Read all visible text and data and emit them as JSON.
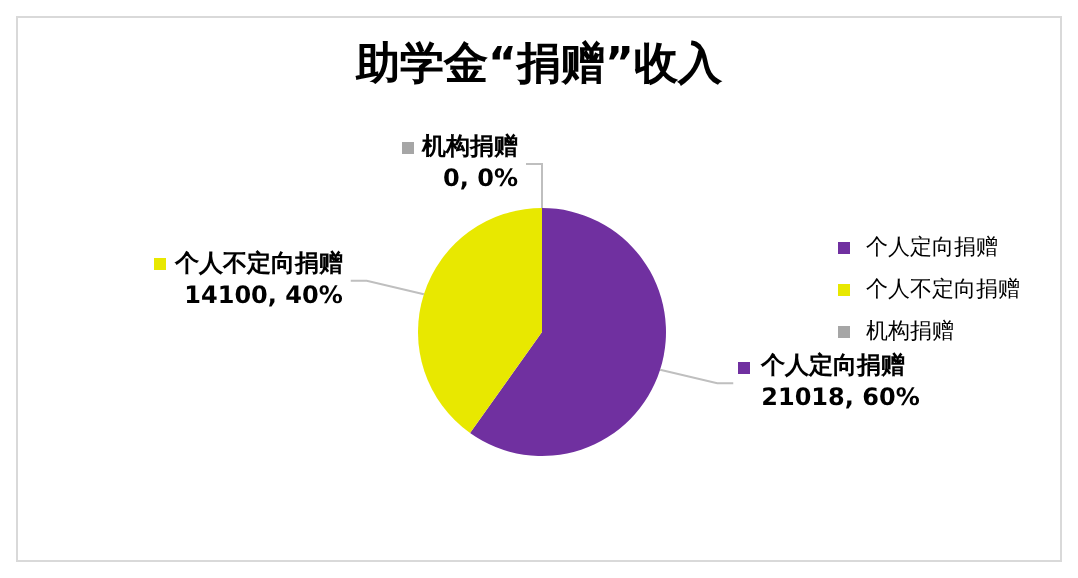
{
  "chart_data": {
    "type": "pie",
    "title": "助学金“捐赠”收入",
    "categories": [
      "个人定向捐赠",
      "个人不定向捐赠",
      "机构捐赠"
    ],
    "values": [
      21018,
      14100,
      0
    ],
    "colors": [
      "#7030a0",
      "#e8e800",
      "#a6a6a6"
    ],
    "value_labels": [
      "21018, 60%",
      "14100, 40%",
      "0, 0%"
    ],
    "legend": "right"
  }
}
